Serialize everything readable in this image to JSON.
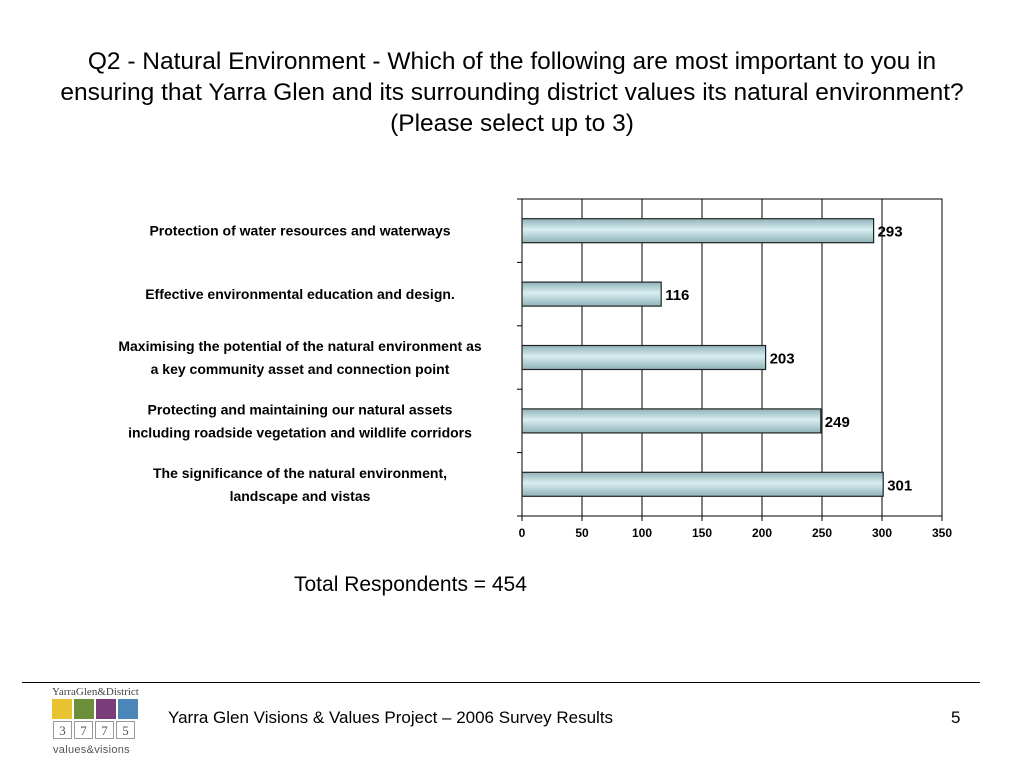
{
  "slide": {
    "title": "Q2 - Natural Environment - Which of the following are most important to you in ensuring that Yarra Glen and its surrounding district values its natural environment? (Please select up to 3)",
    "total_respondents": "Total Respondents = 454",
    "footer_text": "Yarra Glen Visions & Values Project – 2006 Survey Results",
    "page_number": "5"
  },
  "logo": {
    "title": "YarraGlen&District",
    "digits": [
      "3",
      "7",
      "7",
      "5"
    ],
    "subtitle": "values&visions",
    "tile_colors": [
      "#e8c230",
      "#6b8e3a",
      "#7a3d7a",
      "#4a86b8"
    ]
  },
  "chart_data": {
    "type": "bar",
    "orientation": "horizontal",
    "categories": [
      [
        "Protection of water resources and waterways"
      ],
      [
        "Effective environmental education and design."
      ],
      [
        "Maximising the potential of the natural environment as",
        "a key community asset and connection point"
      ],
      [
        "Protecting and maintaining our natural assets",
        "including roadside vegetation and wildlife corridors"
      ],
      [
        "The significance of the natural environment,",
        "landscape and vistas"
      ]
    ],
    "values": [
      293,
      116,
      203,
      249,
      301
    ],
    "xlim": [
      0,
      350
    ],
    "xticks": [
      0,
      50,
      100,
      150,
      200,
      250,
      300,
      350
    ],
    "grid": "vertical",
    "data_labels": true,
    "bar_color": "#a9cdd3"
  }
}
